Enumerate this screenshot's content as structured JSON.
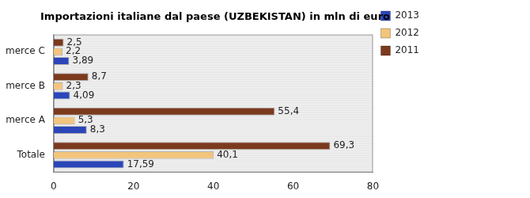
{
  "chart_data": {
    "type": "bar",
    "orientation": "horizontal",
    "title": "Importazioni italiane dal paese (UZBEKISTAN) in mln di euro",
    "categories": [
      "merce C",
      "merce B",
      "merce A",
      "Totale"
    ],
    "series": [
      {
        "name": "2011",
        "color": "#7b3a1e",
        "values": [
          2.5,
          8.7,
          55.4,
          69.3
        ],
        "value_labels": [
          "2,5",
          "8,7",
          "55,4",
          "69,3"
        ]
      },
      {
        "name": "2012",
        "color": "#f3c47c",
        "values": [
          2.2,
          2.3,
          5.3,
          40.1
        ],
        "value_labels": [
          "2,2",
          "2,3",
          "5,3",
          "40,1"
        ]
      },
      {
        "name": "2013",
        "color": "#2b46b9",
        "values": [
          3.89,
          4.09,
          8.3,
          17.59
        ],
        "value_labels": [
          "3,89",
          "4,09",
          "8,3",
          "17,59"
        ]
      }
    ],
    "xlim": [
      0,
      80
    ],
    "xticks": [
      0,
      20,
      40,
      60,
      80
    ],
    "grid": false,
    "legend": "right",
    "data_labels": true
  }
}
